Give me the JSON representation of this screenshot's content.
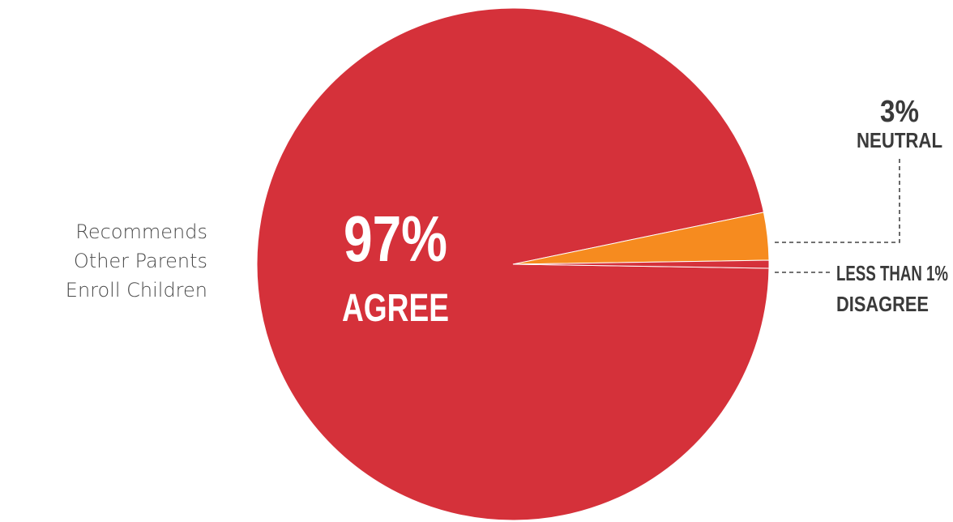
{
  "chart_data": {
    "type": "pie",
    "title": "",
    "side_label_lines": [
      "Recommends",
      "Other Parents",
      "Enroll Children"
    ],
    "slices": [
      {
        "pct_label": "97%",
        "name": "AGREE",
        "value": 96.5,
        "color": "#d5313a"
      },
      {
        "pct_label": "3%",
        "name": "NEUTRAL",
        "value": 3.0,
        "color": "#f68b1f"
      },
      {
        "pct_label": "LESS THAN 1%",
        "name": "DISAGREE",
        "value": 0.5,
        "color": "#d5313a"
      }
    ]
  }
}
